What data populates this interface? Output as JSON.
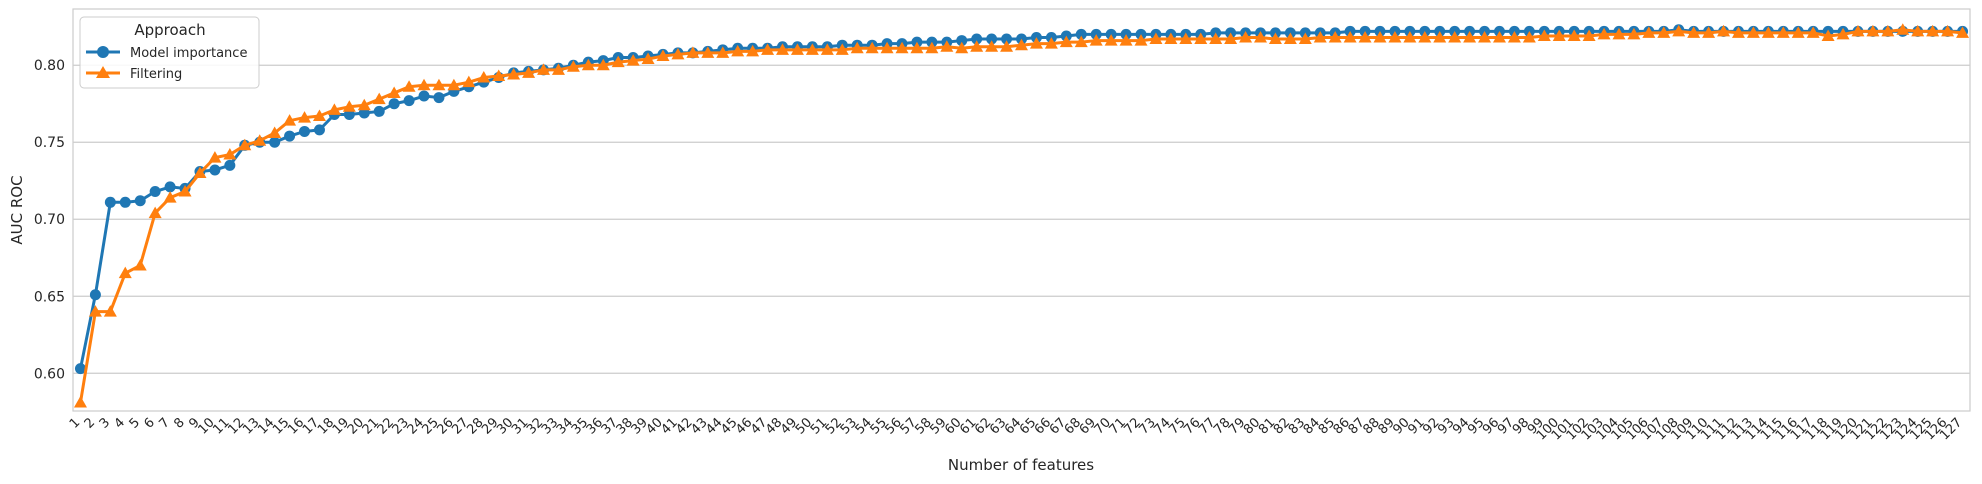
{
  "chart_data": {
    "type": "line",
    "title": "",
    "xlabel": "Number of features",
    "ylabel": "AUC ROC",
    "x": [
      1,
      2,
      3,
      4,
      5,
      6,
      7,
      8,
      9,
      10,
      11,
      12,
      13,
      14,
      15,
      16,
      17,
      18,
      19,
      20,
      21,
      22,
      23,
      24,
      25,
      26,
      27,
      28,
      29,
      30,
      31,
      32,
      33,
      34,
      35,
      36,
      37,
      38,
      39,
      40,
      41,
      42,
      43,
      44,
      45,
      46,
      47,
      48,
      49,
      50,
      51,
      52,
      53,
      54,
      55,
      56,
      57,
      58,
      59,
      60,
      61,
      62,
      63,
      64,
      65,
      66,
      67,
      68,
      69,
      70,
      71,
      72,
      73,
      74,
      75,
      76,
      77,
      78,
      79,
      80,
      81,
      82,
      83,
      84,
      85,
      86,
      87,
      88,
      89,
      90,
      91,
      92,
      93,
      94,
      95,
      96,
      97,
      98,
      99,
      100,
      101,
      102,
      103,
      104,
      105,
      106,
      107,
      108,
      109,
      110,
      111,
      112,
      113,
      114,
      115,
      116,
      117,
      118,
      119,
      120,
      121,
      122,
      123,
      124,
      125,
      126,
      127
    ],
    "ylim": [
      0.5755,
      0.8365
    ],
    "yticks": [
      0.6,
      0.65,
      0.7,
      0.75,
      0.8
    ],
    "ytick_labels": [
      "0.60",
      "0.65",
      "0.70",
      "0.75",
      "0.80"
    ],
    "grid": true,
    "legend": {
      "title": "Approach",
      "placement": "top-left"
    },
    "series": [
      {
        "name": "Model importance",
        "color": "#1f77b4",
        "marker": "circle",
        "values": [
          0.603,
          0.651,
          0.711,
          0.711,
          0.712,
          0.718,
          0.721,
          0.72,
          0.731,
          0.732,
          0.735,
          0.748,
          0.75,
          0.75,
          0.754,
          0.757,
          0.758,
          0.768,
          0.768,
          0.769,
          0.77,
          0.775,
          0.777,
          0.78,
          0.779,
          0.783,
          0.786,
          0.789,
          0.792,
          0.795,
          0.796,
          0.797,
          0.798,
          0.8,
          0.802,
          0.803,
          0.805,
          0.805,
          0.806,
          0.807,
          0.808,
          0.808,
          0.809,
          0.81,
          0.811,
          0.811,
          0.811,
          0.812,
          0.812,
          0.812,
          0.812,
          0.813,
          0.813,
          0.813,
          0.814,
          0.814,
          0.815,
          0.815,
          0.815,
          0.816,
          0.817,
          0.817,
          0.817,
          0.817,
          0.818,
          0.818,
          0.819,
          0.82,
          0.82,
          0.82,
          0.82,
          0.82,
          0.82,
          0.82,
          0.82,
          0.82,
          0.821,
          0.821,
          0.821,
          0.821,
          0.821,
          0.821,
          0.821,
          0.821,
          0.821,
          0.822,
          0.822,
          0.822,
          0.822,
          0.822,
          0.822,
          0.822,
          0.822,
          0.822,
          0.822,
          0.822,
          0.822,
          0.822,
          0.822,
          0.822,
          0.822,
          0.822,
          0.822,
          0.822,
          0.822,
          0.822,
          0.822,
          0.823,
          0.822,
          0.822,
          0.822,
          0.822,
          0.822,
          0.822,
          0.822,
          0.822,
          0.822,
          0.822,
          0.822,
          0.822,
          0.822,
          0.822,
          0.822,
          0.822,
          0.822,
          0.822,
          0.822
        ]
      },
      {
        "name": "Filtering",
        "color": "#ff7f0e",
        "marker": "triangle",
        "values": [
          0.581,
          0.64,
          0.64,
          0.665,
          0.67,
          0.704,
          0.714,
          0.718,
          0.73,
          0.74,
          0.742,
          0.748,
          0.751,
          0.756,
          0.764,
          0.766,
          0.767,
          0.771,
          0.773,
          0.774,
          0.778,
          0.782,
          0.786,
          0.787,
          0.787,
          0.787,
          0.789,
          0.792,
          0.793,
          0.794,
          0.795,
          0.797,
          0.797,
          0.799,
          0.8,
          0.8,
          0.802,
          0.803,
          0.804,
          0.806,
          0.807,
          0.808,
          0.808,
          0.808,
          0.809,
          0.809,
          0.81,
          0.81,
          0.81,
          0.81,
          0.81,
          0.81,
          0.811,
          0.811,
          0.811,
          0.811,
          0.811,
          0.811,
          0.812,
          0.811,
          0.812,
          0.812,
          0.812,
          0.813,
          0.814,
          0.814,
          0.815,
          0.815,
          0.816,
          0.816,
          0.816,
          0.816,
          0.817,
          0.817,
          0.817,
          0.817,
          0.817,
          0.817,
          0.818,
          0.818,
          0.817,
          0.817,
          0.817,
          0.818,
          0.818,
          0.818,
          0.818,
          0.818,
          0.818,
          0.818,
          0.818,
          0.818,
          0.818,
          0.818,
          0.818,
          0.818,
          0.818,
          0.818,
          0.819,
          0.819,
          0.819,
          0.819,
          0.82,
          0.82,
          0.82,
          0.821,
          0.821,
          0.822,
          0.821,
          0.821,
          0.822,
          0.821,
          0.821,
          0.821,
          0.821,
          0.821,
          0.821,
          0.819,
          0.82,
          0.822,
          0.822,
          0.822,
          0.823,
          0.822,
          0.822,
          0.822,
          0.821
        ]
      }
    ]
  }
}
